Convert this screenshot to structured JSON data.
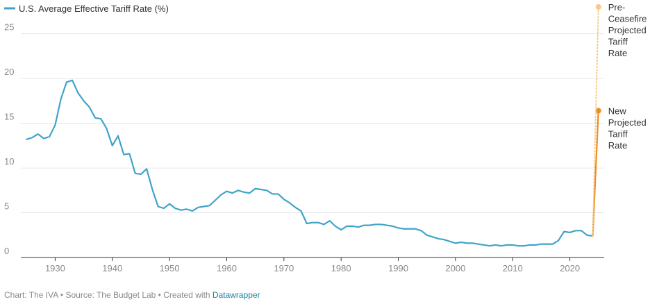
{
  "chart_data": {
    "type": "line",
    "legend": "U.S. Average Effective Tariff Rate (%)",
    "colors": {
      "series": "#3ea4c8",
      "projected": "#f08c1e",
      "pre_ceasefire": "#f7c98a",
      "grid": "#e6e6e6",
      "axis": "#333333"
    },
    "ylim": [
      0,
      28
    ],
    "xlim": [
      1924,
      2026
    ],
    "y_ticks": [
      0,
      5,
      10,
      15,
      20,
      25
    ],
    "y_tick_labels": [
      "0",
      "5",
      "10",
      "15",
      "20",
      "25"
    ],
    "x_ticks": [
      1930,
      1940,
      1950,
      1960,
      1970,
      1980,
      1990,
      2000,
      2010,
      2020
    ],
    "x_tick_labels": [
      "1930",
      "1940",
      "1950",
      "1960",
      "1970",
      "1980",
      "1990",
      "2000",
      "2010",
      "2020"
    ],
    "grid": true,
    "series": [
      {
        "x": [
          1925,
          1926,
          1927,
          1928,
          1929,
          1930,
          1931,
          1932,
          1933,
          1934,
          1935,
          1936,
          1937,
          1938,
          1939,
          1940,
          1941,
          1942,
          1943,
          1944,
          1945,
          1946,
          1947,
          1948,
          1949,
          1950,
          1951,
          1952,
          1953,
          1954,
          1955,
          1956,
          1957,
          1958,
          1959,
          1960,
          1961,
          1962,
          1963,
          1964,
          1965,
          1966,
          1967,
          1968,
          1969,
          1970,
          1971,
          1972,
          1973,
          1974,
          1975,
          1976,
          1977,
          1978,
          1979,
          1980,
          1981,
          1982,
          1983,
          1984,
          1985,
          1986,
          1987,
          1988,
          1989,
          1990,
          1991,
          1992,
          1993,
          1994,
          1995,
          1996,
          1997,
          1998,
          1999,
          2000,
          2001,
          2002,
          2003,
          2004,
          2005,
          2006,
          2007,
          2008,
          2009,
          2010,
          2011,
          2012,
          2013,
          2014,
          2015,
          2016,
          2017,
          2018,
          2019,
          2020,
          2021,
          2022,
          2023,
          2024
        ],
        "values": [
          13.2,
          13.4,
          13.8,
          13.3,
          13.5,
          14.8,
          17.7,
          19.6,
          19.8,
          18.4,
          17.5,
          16.8,
          15.6,
          15.5,
          14.4,
          12.5,
          13.6,
          11.5,
          11.6,
          9.4,
          9.3,
          9.9,
          7.6,
          5.7,
          5.5,
          6.0,
          5.5,
          5.3,
          5.4,
          5.2,
          5.6,
          5.7,
          5.8,
          6.4,
          7.0,
          7.4,
          7.2,
          7.5,
          7.3,
          7.2,
          7.7,
          7.6,
          7.5,
          7.1,
          7.1,
          6.5,
          6.1,
          5.6,
          5.2,
          3.8,
          3.9,
          3.9,
          3.7,
          4.1,
          3.5,
          3.1,
          3.5,
          3.5,
          3.4,
          3.6,
          3.6,
          3.7,
          3.7,
          3.6,
          3.5,
          3.3,
          3.2,
          3.2,
          3.2,
          3.0,
          2.5,
          2.3,
          2.1,
          2.0,
          1.8,
          1.6,
          1.7,
          1.6,
          1.6,
          1.5,
          1.4,
          1.3,
          1.4,
          1.3,
          1.4,
          1.4,
          1.3,
          1.3,
          1.4,
          1.4,
          1.5,
          1.5,
          1.5,
          1.9,
          2.9,
          2.8,
          3.0,
          3.0,
          2.5,
          2.4
        ]
      }
    ],
    "projections": [
      {
        "label_lines": [
          "New",
          "Projected",
          "Tariff",
          "Rate"
        ],
        "from": [
          2024,
          2.4
        ],
        "to": [
          2025,
          16.4
        ],
        "style": "solid"
      },
      {
        "label_lines": [
          "Pre-",
          "Ceasefire",
          "Projected",
          "Tariff",
          "Rate"
        ],
        "from": [
          2024,
          2.4
        ],
        "to": [
          2025,
          28.0
        ],
        "style": "dotted"
      }
    ]
  },
  "footer": {
    "prefix": "Chart: The IVA • Source: The Budget Lab • Created with ",
    "link": "Datawrapper"
  }
}
